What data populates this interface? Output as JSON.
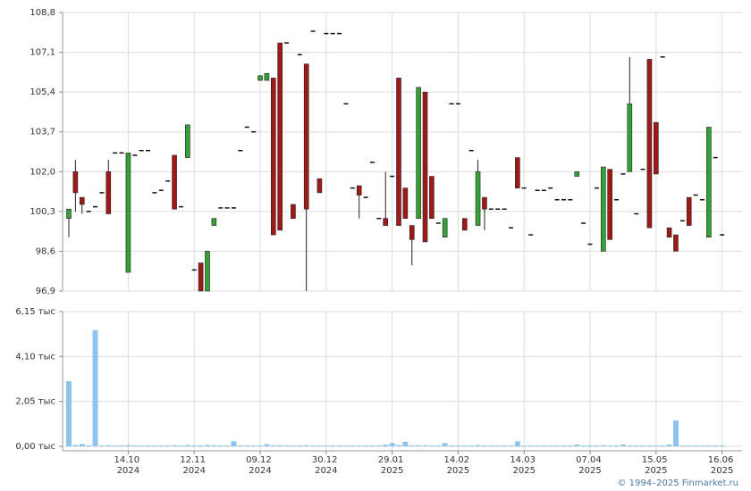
{
  "chart_data": {
    "type": "candlestick",
    "categories": [
      null,
      null,
      null,
      null,
      null,
      null,
      null,
      null,
      null,
      "14.10 2024",
      null,
      null,
      null,
      null,
      null,
      null,
      null,
      null,
      null,
      "12.11 2024",
      null,
      null,
      null,
      null,
      null,
      null,
      null,
      null,
      null,
      "09.12 2024",
      null,
      null,
      null,
      null,
      null,
      null,
      null,
      null,
      null,
      "30.12 2024",
      null,
      null,
      null,
      null,
      null,
      null,
      null,
      null,
      null,
      "29.01 2025",
      null,
      null,
      null,
      null,
      null,
      null,
      null,
      null,
      null,
      "14.02 2025",
      null,
      null,
      null,
      null,
      null,
      null,
      null,
      null,
      null,
      "14.03 2025",
      null,
      null,
      null,
      null,
      null,
      null,
      null,
      null,
      null,
      "07.04 2025",
      null,
      null,
      null,
      null,
      null,
      null,
      null,
      null,
      null,
      "15.05 2025",
      null,
      null,
      null,
      null,
      null,
      null,
      null,
      null,
      null,
      "16.06 2025"
    ],
    "open": [
      100.0,
      102.0,
      100.9,
      100.3,
      100.5,
      101.1,
      102.0,
      102.8,
      102.8,
      97.7,
      102.7,
      102.9,
      102.9,
      101.1,
      101.2,
      101.6,
      102.7,
      100.5,
      102.6,
      97.8,
      98.1,
      96.9,
      99.7,
      100.45,
      100.45,
      100.45,
      102.9,
      103.9,
      103.7,
      105.9,
      105.9,
      106.0,
      107.5,
      107.5,
      100.6,
      107.0,
      106.6,
      108.0,
      101.7,
      107.9,
      107.9,
      107.9,
      104.9,
      101.3,
      101.4,
      100.9,
      102.4,
      100.0,
      100.0,
      101.8,
      106.0,
      101.3,
      99.7,
      100.0,
      105.4,
      101.8,
      99.8,
      99.2,
      104.9,
      104.9,
      100.0,
      102.9,
      99.7,
      100.9,
      100.4,
      100.4,
      100.4,
      99.6,
      102.6,
      101.3,
      99.3,
      101.2,
      101.2,
      101.3,
      100.8,
      100.8,
      100.8,
      101.8,
      99.8,
      98.9,
      101.3,
      98.6,
      102.1,
      100.8,
      101.9,
      102.0,
      100.2,
      102.1,
      106.8,
      104.1,
      106.9,
      99.6,
      99.3,
      99.9,
      100.9,
      101.0,
      100.8,
      99.2,
      102.6,
      99.3
    ],
    "high": [
      100.4,
      102.5,
      100.9,
      100.3,
      100.5,
      101.1,
      102.5,
      102.8,
      102.8,
      102.8,
      102.7,
      102.9,
      102.9,
      101.1,
      101.2,
      101.6,
      102.7,
      100.5,
      104.0,
      97.8,
      98.1,
      98.6,
      100.0,
      100.45,
      100.45,
      100.45,
      102.9,
      103.9,
      103.7,
      106.1,
      106.2,
      106.0,
      107.5,
      107.5,
      100.6,
      107.0,
      106.6,
      108.0,
      101.7,
      107.9,
      107.9,
      107.9,
      104.9,
      101.3,
      101.4,
      100.9,
      102.4,
      100.0,
      102.0,
      101.8,
      106.0,
      101.3,
      99.7,
      105.6,
      105.4,
      101.8,
      99.8,
      100.0,
      104.9,
      104.9,
      100.0,
      102.9,
      102.5,
      100.9,
      100.4,
      100.4,
      100.4,
      99.6,
      102.6,
      101.3,
      99.3,
      101.2,
      101.2,
      101.3,
      100.8,
      100.8,
      100.8,
      102.0,
      99.8,
      98.9,
      101.3,
      102.2,
      102.1,
      100.8,
      101.9,
      106.9,
      100.2,
      102.1,
      106.8,
      104.1,
      106.9,
      99.6,
      99.3,
      99.9,
      100.9,
      101.0,
      100.8,
      103.9,
      102.6,
      99.3
    ],
    "low": [
      99.2,
      100.3,
      100.2,
      100.3,
      100.5,
      101.1,
      100.2,
      102.8,
      102.8,
      97.7,
      102.7,
      102.9,
      102.9,
      101.1,
      101.2,
      101.6,
      100.4,
      100.5,
      102.6,
      97.8,
      96.9,
      96.9,
      99.7,
      100.45,
      100.45,
      100.45,
      102.9,
      103.9,
      103.7,
      105.9,
      105.9,
      99.3,
      99.5,
      107.5,
      100.0,
      107.0,
      96.9,
      108.0,
      101.1,
      107.9,
      107.9,
      107.9,
      104.9,
      101.3,
      100.0,
      100.9,
      102.4,
      100.0,
      99.7,
      101.8,
      99.7,
      100.0,
      98.0,
      100.0,
      99.0,
      100.0,
      99.8,
      99.2,
      104.9,
      104.9,
      99.5,
      102.9,
      99.7,
      99.5,
      100.4,
      100.4,
      100.4,
      99.6,
      101.3,
      101.3,
      99.3,
      101.2,
      101.2,
      101.3,
      100.8,
      100.8,
      100.8,
      101.8,
      99.8,
      98.9,
      101.3,
      98.6,
      99.1,
      100.8,
      101.9,
      102.0,
      100.2,
      102.1,
      99.6,
      101.9,
      106.9,
      99.2,
      98.6,
      99.9,
      99.7,
      101.0,
      100.8,
      99.2,
      102.6,
      99.3
    ],
    "close": [
      100.4,
      101.1,
      100.6,
      100.3,
      100.5,
      101.1,
      100.2,
      102.8,
      102.8,
      102.8,
      102.7,
      102.9,
      102.9,
      101.1,
      101.2,
      101.6,
      100.4,
      100.5,
      104.0,
      97.8,
      96.9,
      98.6,
      100.0,
      100.45,
      100.45,
      100.45,
      102.9,
      103.9,
      103.7,
      106.1,
      106.2,
      99.3,
      99.5,
      107.5,
      100.0,
      107.0,
      100.4,
      108.0,
      101.1,
      107.9,
      107.9,
      107.9,
      104.9,
      101.3,
      101.0,
      100.9,
      102.4,
      100.0,
      99.7,
      101.8,
      99.7,
      100.0,
      99.1,
      105.6,
      99.0,
      100.0,
      99.8,
      100.0,
      104.9,
      104.9,
      99.5,
      102.9,
      102.0,
      100.4,
      100.4,
      100.4,
      100.4,
      99.6,
      101.3,
      101.3,
      99.3,
      101.2,
      101.2,
      101.3,
      100.8,
      100.8,
      100.8,
      102.0,
      99.8,
      98.9,
      101.3,
      102.2,
      99.1,
      100.8,
      101.9,
      104.9,
      100.2,
      102.1,
      99.6,
      101.9,
      106.9,
      99.2,
      98.6,
      99.9,
      99.7,
      101.0,
      100.8,
      103.9,
      102.6,
      99.3
    ],
    "volume": [
      2970,
      60,
      110,
      40,
      5300,
      40,
      50,
      40,
      40,
      60,
      40,
      40,
      40,
      40,
      40,
      40,
      50,
      40,
      60,
      40,
      50,
      60,
      50,
      40,
      40,
      230,
      40,
      40,
      40,
      40,
      100,
      50,
      50,
      40,
      40,
      40,
      50,
      40,
      40,
      40,
      40,
      40,
      40,
      40,
      40,
      40,
      40,
      40,
      80,
      150,
      60,
      210,
      40,
      50,
      50,
      40,
      40,
      150,
      40,
      40,
      40,
      40,
      60,
      40,
      40,
      40,
      40,
      40,
      230,
      40,
      40,
      40,
      40,
      40,
      40,
      40,
      40,
      80,
      40,
      40,
      40,
      50,
      40,
      40,
      80,
      40,
      40,
      40,
      40,
      40,
      40,
      80,
      1180,
      40,
      40,
      40,
      40,
      40,
      40,
      40
    ],
    "ylim": [
      96.9,
      108.8
    ],
    "yticks": [
      {
        "value": 96.9,
        "label": "96,9"
      },
      {
        "value": 98.6,
        "label": "98,6"
      },
      {
        "value": 100.3,
        "label": "100,3"
      },
      {
        "value": 102.0,
        "label": "102,0"
      },
      {
        "value": 103.7,
        "label": "103,7"
      },
      {
        "value": 105.4,
        "label": "105,4"
      },
      {
        "value": 107.1,
        "label": "107,1"
      },
      {
        "value": 108.8,
        "label": "108,8"
      }
    ],
    "y2lim": [
      0,
      6150
    ],
    "y2ticks": [
      {
        "value": 0,
        "label": "0,00 тыс"
      },
      {
        "value": 2050,
        "label": "2,05 тыс"
      },
      {
        "value": 4100,
        "label": "4,10 тыс"
      },
      {
        "value": 6150,
        "label": "6,15 тыс"
      }
    ],
    "up_color": "#35a035",
    "down_color": "#a01818",
    "volume_color": "#8cc4ee",
    "grid": true,
    "footer": "© 1994–2025 Finmarket.ru"
  }
}
